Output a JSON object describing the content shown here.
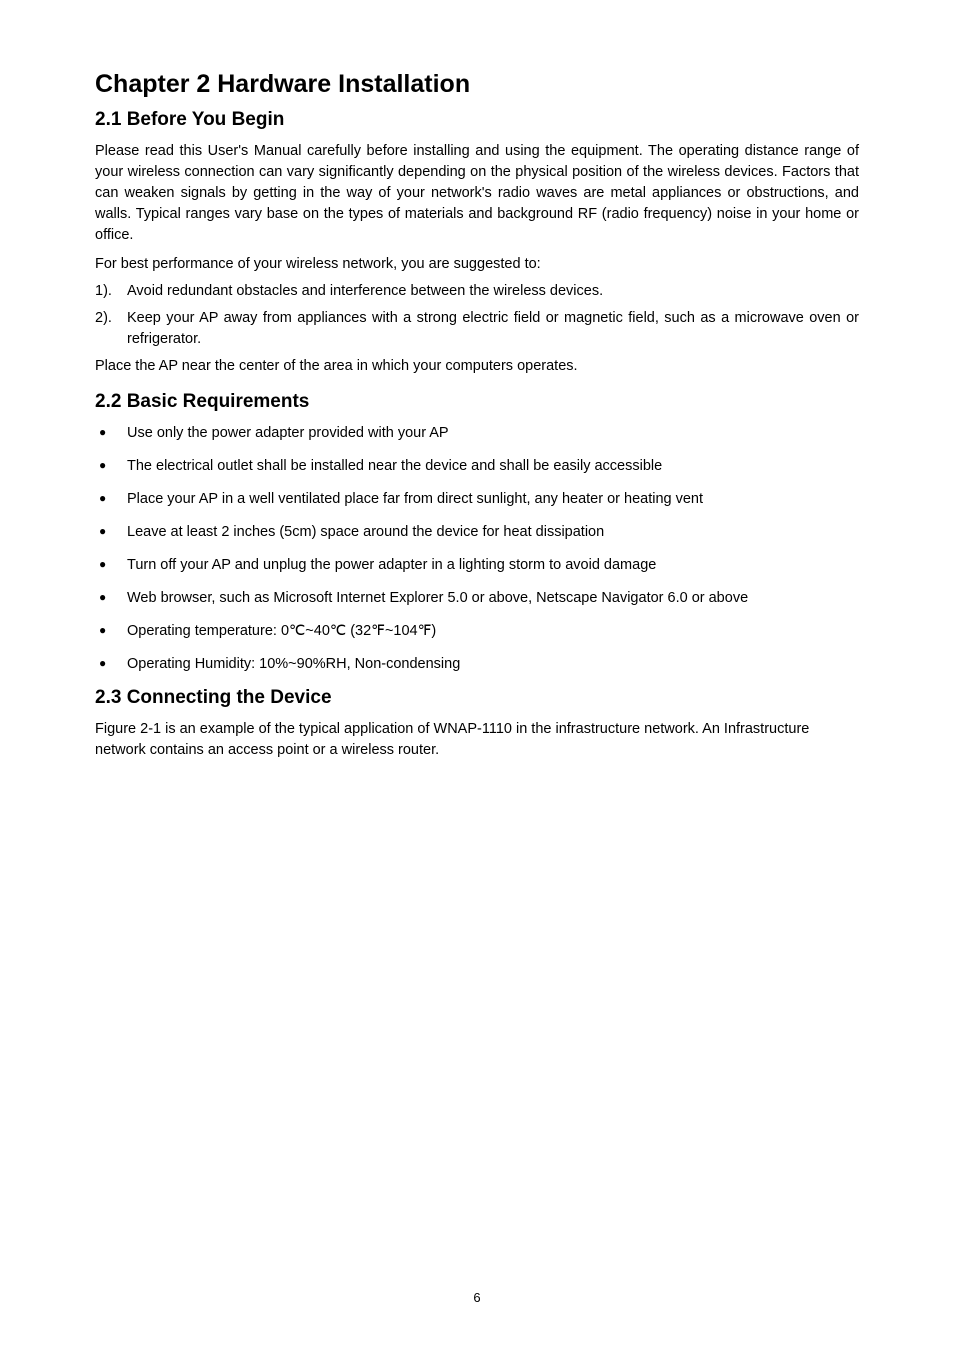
{
  "chapter_title": "Chapter 2  Hardware Installation",
  "sec21": {
    "heading": "2.1   Before You Begin",
    "p1": "Please read this User's Manual carefully before installing and using the equipment. The operating distance range of your wireless connection can vary significantly depending on the physical position of the wireless devices. Factors that can weaken signals by getting in the way of your network's radio waves are metal appliances or obstructions, and walls. Typical ranges vary base on the types of materials and background RF (radio frequency) noise in your home or office.",
    "p2": "For best performance of your wireless network, you are suggested to:",
    "n1": "Avoid redundant obstacles and interference between the wireless devices.",
    "n2": "Keep your AP away from appliances with a strong electric field or magnetic field, such as a microwave oven or refrigerator.",
    "p3": "Place the AP near the center of the area in which your computers operates."
  },
  "sec22": {
    "heading": "2.2   Basic Requirements",
    "b1": "Use only the power adapter provided with your AP",
    "b2": "The electrical outlet shall be installed near the device and shall be easily accessible",
    "b3": "Place your AP in a well ventilated place far from direct sunlight, any heater or heating vent",
    "b4": "Leave at least 2 inches (5cm) space around the device for heat dissipation",
    "b5": "Turn off your AP and unplug the power adapter in a lighting storm to avoid damage",
    "b6": "Web browser, such as Microsoft Internet Explorer 5.0 or above, Netscape Navigator 6.0 or above",
    "b7": "Operating temperature: 0℃~40℃  (32℉~104℉)",
    "b8": "Operating Humidity: 10%~90%RH, Non-condensing"
  },
  "sec23": {
    "heading": "2.3   Connecting the Device",
    "p1": "Figure 2-1 is an example of the typical application of WNAP-1110 in the infrastructure network. An Infrastructure network contains an access point or a wireless router."
  },
  "page_number": "6"
}
